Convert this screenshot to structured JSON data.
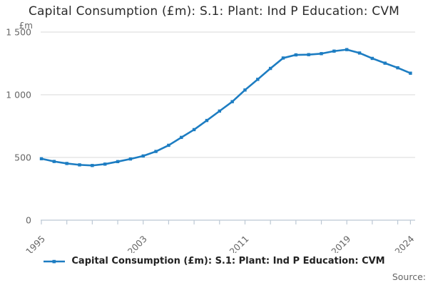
{
  "page": {
    "title": "Capital Consumption (£m): S.1: Plant: Ind P Education: CVM",
    "unit_label": "£m",
    "source_label": "Source:"
  },
  "legend": {
    "label": "Capital Consumption (£m): S.1: Plant: Ind P Education: CVM"
  },
  "colors": {
    "line": "#1d7dc2",
    "grid": "#d9d9d9",
    "axis": "#bcc8d4",
    "tick_text": "#666666",
    "title_text": "#2b2b2b"
  },
  "chart_data": {
    "type": "line",
    "title": "Capital Consumption (£m): S.1: Plant: Ind P Education: CVM",
    "series_name": "Capital Consumption (£m): S.1: Plant: Ind P Education: CVM",
    "ylabel": "£m",
    "x": [
      1995,
      1996,
      1997,
      1998,
      1999,
      2000,
      2001,
      2002,
      2003,
      2004,
      2005,
      2006,
      2007,
      2008,
      2009,
      2010,
      2011,
      2012,
      2013,
      2014,
      2015,
      2016,
      2017,
      2018,
      2019,
      2020,
      2021,
      2022,
      2023,
      2024
    ],
    "values": [
      490,
      468,
      452,
      441,
      436,
      447,
      467,
      488,
      512,
      548,
      597,
      660,
      722,
      795,
      870,
      945,
      1038,
      1123,
      1210,
      1293,
      1318,
      1320,
      1328,
      1348,
      1360,
      1333,
      1290,
      1252,
      1215,
      1172
    ],
    "x_axis": {
      "min": 1995,
      "max": 2024,
      "tick_years": [
        1995,
        1997,
        1999,
        2001,
        2003,
        2005,
        2007,
        2009,
        2011,
        2013,
        2015,
        2017,
        2019,
        2021,
        2023,
        2024
      ],
      "labeled_years": [
        1995,
        2003,
        2011,
        2019,
        2024
      ]
    },
    "y_axis": {
      "min": 0,
      "max": 1500,
      "ticks": [
        {
          "value": 0,
          "label": "0"
        },
        {
          "value": 500,
          "label": "500"
        },
        {
          "value": 1000,
          "label": "1 000"
        },
        {
          "value": 1500,
          "label": "1 500"
        }
      ]
    },
    "grid": "horizontal",
    "legend_position": "bottom",
    "markers": true
  }
}
